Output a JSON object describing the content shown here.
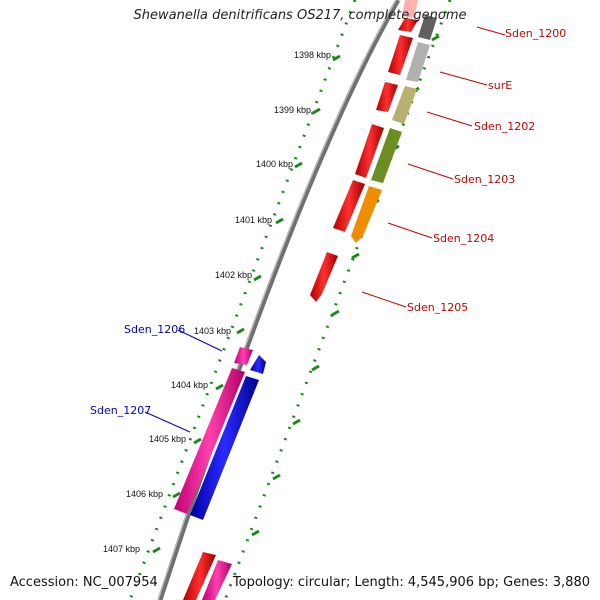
{
  "title": "Shewanella denitrificans OS217, complete genome",
  "accession": "Accession: NC_007954",
  "topology": "Topology: circular; Length: 4,545,906 bp; Genes: 3,880",
  "scale_labels": [
    "1398 kbp",
    "1399 kbp",
    "1400 kbp",
    "1401 kbp",
    "1402 kbp",
    "1403 kbp",
    "1404 kbp",
    "1405 kbp",
    "1406 kbp",
    "1407 kbp"
  ],
  "gene_labels": [
    {
      "text": "Sden_1200",
      "color": "#cc0000",
      "strand": "forward"
    },
    {
      "text": "surE",
      "color": "#cc0000",
      "strand": "forward"
    },
    {
      "text": "Sden_1202",
      "color": "#cc0000",
      "strand": "forward"
    },
    {
      "text": "Sden_1203",
      "color": "#cc0000",
      "strand": "forward"
    },
    {
      "text": "Sden_1204",
      "color": "#cc0000",
      "strand": "forward"
    },
    {
      "text": "Sden_1205",
      "color": "#cc0000",
      "strand": "forward"
    },
    {
      "text": "Sden_1206",
      "color": "#0000cc",
      "strand": "reverse"
    },
    {
      "text": "Sden_1207",
      "color": "#0000cc",
      "strand": "reverse"
    }
  ],
  "colors": {
    "backbone": "#707070",
    "tick": "#1a8a1a",
    "gene_red": "#e60000",
    "gene_blue": "#1010e0",
    "gene_pink": "#e8168a",
    "gene_gray": "#a8a8a8",
    "gene_khaki": "#b8b070",
    "gene_olive": "#6b8e23",
    "gene_orange": "#f08c00"
  }
}
